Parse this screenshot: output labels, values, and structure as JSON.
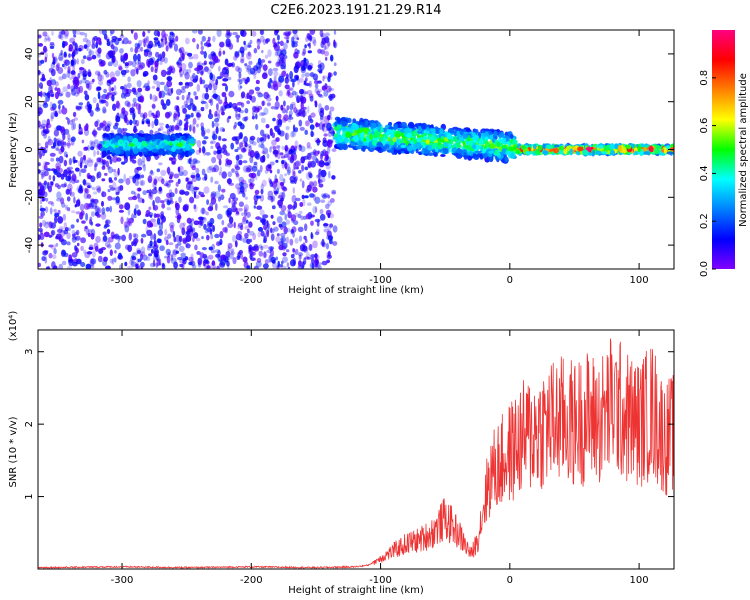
{
  "chart_data": [
    {
      "type": "heatmap",
      "title": "C2E6.2023.191.21.29.R14",
      "xlabel": "Height of straight line (km)",
      "ylabel": "Frequency (Hz)",
      "xlim": [
        -365,
        127
      ],
      "ylim": [
        -50,
        50
      ],
      "xticks": [
        -300,
        -200,
        -100,
        0,
        100
      ],
      "yticks": [
        -40,
        -20,
        0,
        20,
        40
      ],
      "grid": false,
      "colorbar": {
        "label": "Normalized spectral amplitude",
        "range": [
          0,
          1
        ],
        "ticks": [
          0.0,
          0.2,
          0.4,
          0.6,
          0.8
        ],
        "colormap": [
          "#ff0080",
          "#ff0000",
          "#ff8000",
          "#ffff00",
          "#00ff00",
          "#00ffff",
          "#0080ff",
          "#0000ff",
          "#8000ff"
        ]
      },
      "regions": [
        {
          "x_range": [
            -365,
            -135
          ],
          "freq_range": [
            -50,
            50
          ],
          "amplitude": 0.1,
          "note_kind": "broadband scattered noise"
        },
        {
          "x_range": [
            -315,
            -245
          ],
          "freq_center": 2,
          "freq_halfwidth": 4,
          "amplitude": 0.5
        },
        {
          "x_range": [
            -135,
            5
          ],
          "freq_center_start": 7,
          "freq_center_end": 1,
          "freq_halfwidth": 6,
          "amplitude": 0.6
        },
        {
          "x_range": [
            5,
            127
          ],
          "freq_center": 0,
          "freq_halfwidth": 1.5,
          "amplitude": 0.95
        }
      ]
    },
    {
      "type": "line",
      "xlabel": "Height of straight line (km)",
      "ylabel": "SNR (10 * v/v)",
      "y_scale_label": "(x10⁴)",
      "xlim": [
        -365,
        127
      ],
      "ylim": [
        0,
        3.3
      ],
      "xticks": [
        -300,
        -200,
        -100,
        0,
        100
      ],
      "yticks": [
        1,
        2,
        3
      ],
      "grid": false,
      "color": "#ee3333",
      "series": [
        {
          "x": [
            -365,
            -300,
            -250,
            -200,
            -150,
            -120,
            -110,
            -100,
            -90,
            -80,
            -70,
            -60,
            -50,
            -40,
            -30,
            -25,
            -20,
            -15,
            -10,
            -5,
            0,
            10,
            20,
            30,
            40,
            50,
            60,
            70,
            80,
            90,
            100,
            110,
            120,
            127
          ],
          "values": [
            0.02,
            0.03,
            0.02,
            0.03,
            0.02,
            0.03,
            0.05,
            0.15,
            0.25,
            0.35,
            0.4,
            0.5,
            0.7,
            0.5,
            0.2,
            0.4,
            0.9,
            1.3,
            1.4,
            1.5,
            1.6,
            1.8,
            1.9,
            2.0,
            2.05,
            2.0,
            2.1,
            2.05,
            2.3,
            2.1,
            2.0,
            2.2,
            1.8,
            1.9
          ]
        }
      ]
    }
  ]
}
